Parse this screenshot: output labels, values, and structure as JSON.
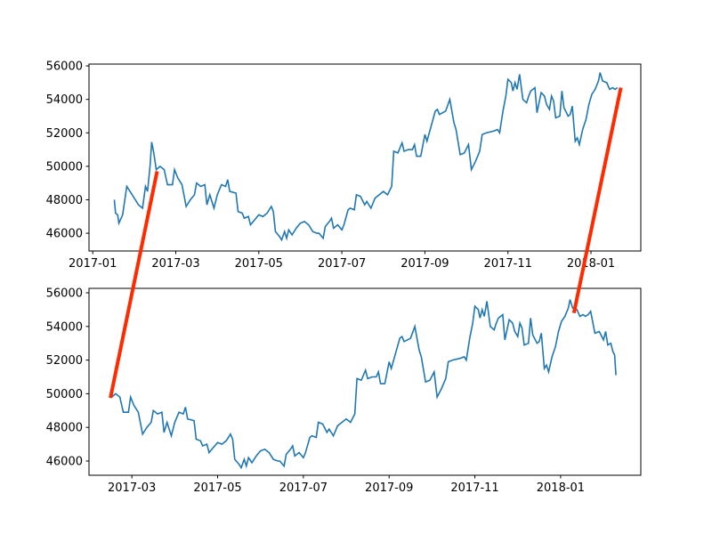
{
  "chart_data": [
    {
      "type": "line",
      "color": "#1f77b4",
      "x": [
        0.52,
        0.55,
        0.6,
        0.63,
        0.72,
        0.82,
        0.95,
        1.1,
        1.2,
        1.27,
        1.32,
        1.38,
        1.42,
        1.47,
        1.53,
        1.62,
        1.72,
        1.8,
        1.92,
        1.97,
        2.05,
        2.15,
        2.25,
        2.35,
        2.45,
        2.5,
        2.6,
        2.7,
        2.75,
        2.82,
        2.92,
        3.0,
        3.1,
        3.2,
        3.25,
        3.3,
        3.45,
        3.5,
        3.6,
        3.65,
        3.75,
        3.8,
        3.9,
        4.0,
        4.1,
        4.2,
        4.3,
        4.35,
        4.4,
        4.5,
        4.55,
        4.62,
        4.67,
        4.72,
        4.8,
        4.9,
        5.0,
        5.1,
        5.2,
        5.3,
        5.4,
        5.45,
        5.55,
        5.6,
        5.7,
        5.75,
        5.8,
        5.9,
        6.0,
        6.05,
        6.15,
        6.2,
        6.3,
        6.35,
        6.45,
        6.55,
        6.6,
        6.7,
        6.8,
        6.9,
        7.0,
        7.1,
        7.2,
        7.25,
        7.35,
        7.45,
        7.5,
        7.6,
        7.7,
        7.75,
        7.8,
        7.9,
        8.0,
        8.05,
        8.15,
        8.25,
        8.3,
        8.35,
        8.5,
        8.6,
        8.7,
        8.75,
        8.85,
        8.95,
        9.05,
        9.12,
        9.22,
        9.32,
        9.38,
        9.48,
        9.65,
        9.75,
        9.8,
        9.88,
        9.95,
        10.0,
        10.08,
        10.12,
        10.17,
        10.22,
        10.28,
        10.36,
        10.45,
        10.5,
        10.55,
        10.65,
        10.7,
        10.8,
        10.88,
        10.93,
        11.0,
        11.05,
        11.1,
        11.15,
        11.25,
        11.3,
        11.35,
        11.45,
        11.5,
        11.55,
        11.62,
        11.67,
        11.72,
        11.8,
        11.88,
        11.95,
        12.02,
        12.1,
        12.18,
        12.22,
        12.28,
        12.38,
        12.45,
        12.52,
        12.58,
        12.64
      ],
      "values": [
        48000,
        47200,
        47100,
        46600,
        47100,
        48800,
        48300,
        47700,
        47500,
        48800,
        48500,
        50000,
        51450,
        50800,
        49800,
        50000,
        49800,
        48900,
        48900,
        49800,
        49300,
        48900,
        47600,
        48000,
        48300,
        49000,
        48800,
        48900,
        47700,
        48300,
        47500,
        48300,
        48900,
        48800,
        49200,
        48500,
        48400,
        47300,
        47200,
        46900,
        47000,
        46500,
        46800,
        47100,
        47000,
        47200,
        47600,
        47300,
        46100,
        45800,
        45600,
        46100,
        45700,
        46200,
        45900,
        46300,
        46600,
        46700,
        46500,
        46100,
        46000,
        46000,
        45700,
        46400,
        46700,
        46900,
        46300,
        46500,
        46200,
        46500,
        47400,
        47500,
        47400,
        48300,
        48200,
        47700,
        47900,
        47500,
        48100,
        48300,
        48500,
        48300,
        48800,
        50900,
        50800,
        51400,
        50900,
        51000,
        51000,
        51300,
        50600,
        50600,
        51900,
        51500,
        52400,
        53300,
        53400,
        53100,
        53300,
        54000,
        52600,
        52200,
        50700,
        50800,
        51300,
        49800,
        50300,
        50900,
        51900,
        52000,
        52100,
        52200,
        52000,
        53300,
        54200,
        55200,
        55000,
        54500,
        55000,
        54600,
        55500,
        54000,
        53800,
        54200,
        54500,
        54700,
        53200,
        54400,
        54200,
        53700,
        53400,
        54200,
        53900,
        52900,
        53000,
        54500,
        53500,
        53000,
        53100,
        53600,
        51500,
        51700,
        51300,
        52200,
        52800,
        53700,
        54300,
        54600,
        55100,
        55600,
        55100,
        55000,
        54600,
        54700,
        54600,
        54700
      ],
      "xlim": [
        -0.09,
        13.2
      ],
      "xticks": [
        {
          "value": 0,
          "label": "2017-01"
        },
        {
          "value": 2,
          "label": "2017-03"
        },
        {
          "value": 4,
          "label": "2017-05"
        },
        {
          "value": 6,
          "label": "2017-07"
        },
        {
          "value": 8,
          "label": "2017-09"
        },
        {
          "value": 10,
          "label": "2017-11"
        },
        {
          "value": 12,
          "label": "2018-01"
        }
      ],
      "ylim": [
        44940,
        56110
      ],
      "yticks": [
        46000,
        48000,
        50000,
        52000,
        54000,
        56000
      ]
    },
    {
      "type": "line",
      "color": "#1f77b4",
      "x": [
        1.53,
        1.62,
        1.72,
        1.8,
        1.92,
        1.97,
        2.05,
        2.15,
        2.25,
        2.35,
        2.45,
        2.5,
        2.6,
        2.7,
        2.75,
        2.82,
        2.92,
        3.0,
        3.1,
        3.2,
        3.25,
        3.3,
        3.45,
        3.5,
        3.6,
        3.65,
        3.75,
        3.8,
        3.9,
        4.0,
        4.1,
        4.2,
        4.3,
        4.35,
        4.4,
        4.5,
        4.55,
        4.62,
        4.67,
        4.72,
        4.8,
        4.9,
        5.0,
        5.1,
        5.2,
        5.3,
        5.4,
        5.45,
        5.55,
        5.6,
        5.7,
        5.75,
        5.8,
        5.9,
        6.0,
        6.05,
        6.15,
        6.2,
        6.3,
        6.35,
        6.45,
        6.55,
        6.6,
        6.7,
        6.8,
        6.9,
        7.0,
        7.1,
        7.2,
        7.25,
        7.35,
        7.45,
        7.5,
        7.6,
        7.7,
        7.75,
        7.8,
        7.9,
        8.0,
        8.05,
        8.15,
        8.25,
        8.3,
        8.35,
        8.5,
        8.6,
        8.7,
        8.75,
        8.85,
        8.95,
        9.05,
        9.12,
        9.22,
        9.32,
        9.38,
        9.48,
        9.65,
        9.75,
        9.8,
        9.88,
        9.95,
        10.0,
        10.08,
        10.12,
        10.17,
        10.22,
        10.28,
        10.36,
        10.45,
        10.5,
        10.55,
        10.65,
        10.7,
        10.8,
        10.88,
        10.93,
        11.0,
        11.05,
        11.1,
        11.15,
        11.25,
        11.3,
        11.35,
        11.45,
        11.5,
        11.55,
        11.62,
        11.67,
        11.72,
        11.8,
        11.88,
        11.95,
        12.02,
        12.1,
        12.18,
        12.22,
        12.28,
        12.38,
        12.45,
        12.52,
        12.58,
        12.64,
        12.7,
        12.8,
        12.9,
        13.0,
        13.05,
        13.1,
        13.17,
        13.22,
        13.26,
        13.29
      ],
      "values": [
        49800,
        50000,
        49800,
        48900,
        48900,
        49800,
        49300,
        48900,
        47600,
        48000,
        48300,
        49000,
        48800,
        48900,
        47700,
        48300,
        47500,
        48300,
        48900,
        48800,
        49200,
        48500,
        48400,
        47300,
        47200,
        46900,
        47000,
        46500,
        46800,
        47100,
        47000,
        47200,
        47600,
        47300,
        46100,
        45800,
        45600,
        46100,
        45700,
        46200,
        45900,
        46300,
        46600,
        46700,
        46500,
        46100,
        46000,
        46000,
        45700,
        46400,
        46700,
        46900,
        46300,
        46500,
        46200,
        46500,
        47400,
        47500,
        47400,
        48300,
        48200,
        47700,
        47900,
        47500,
        48100,
        48300,
        48500,
        48300,
        48800,
        50900,
        50800,
        51400,
        50900,
        51000,
        51000,
        51300,
        50600,
        50600,
        51900,
        51500,
        52400,
        53300,
        53400,
        53100,
        53300,
        54000,
        52600,
        52200,
        50700,
        50800,
        51300,
        49800,
        50300,
        50900,
        51900,
        52000,
        52100,
        52200,
        52000,
        53300,
        54200,
        55200,
        55000,
        54500,
        55000,
        54600,
        55500,
        54000,
        53800,
        54200,
        54500,
        54700,
        53200,
        54400,
        54200,
        53700,
        53400,
        54200,
        53900,
        52900,
        53000,
        54500,
        53500,
        53000,
        53100,
        53600,
        51500,
        51700,
        51300,
        52200,
        52800,
        53700,
        54300,
        54600,
        55100,
        55600,
        55100,
        55000,
        54600,
        54700,
        54600,
        54700,
        54900,
        53600,
        53700,
        53200,
        53700,
        52900,
        53000,
        52500,
        52300,
        51100
      ],
      "xlim": [
        1.0,
        13.87
      ],
      "xticks": [
        {
          "value": 2,
          "label": "2017-03"
        },
        {
          "value": 4,
          "label": "2017-05"
        },
        {
          "value": 6,
          "label": "2017-07"
        },
        {
          "value": 8,
          "label": "2017-09"
        },
        {
          "value": 10,
          "label": "2017-11"
        },
        {
          "value": 12,
          "label": "2018-01"
        }
      ],
      "ylim": [
        45153,
        56265
      ],
      "yticks": [
        46000,
        48000,
        50000,
        52000,
        54000,
        56000
      ]
    }
  ],
  "connections": [
    {
      "color": "#ff2a00",
      "xyA": [
        1.55,
        49700
      ],
      "xyB": [
        1.5,
        49750
      ]
    },
    {
      "color": "#ff2a00",
      "xyA": [
        12.72,
        54700
      ],
      "xyB": [
        12.31,
        54800
      ]
    }
  ]
}
